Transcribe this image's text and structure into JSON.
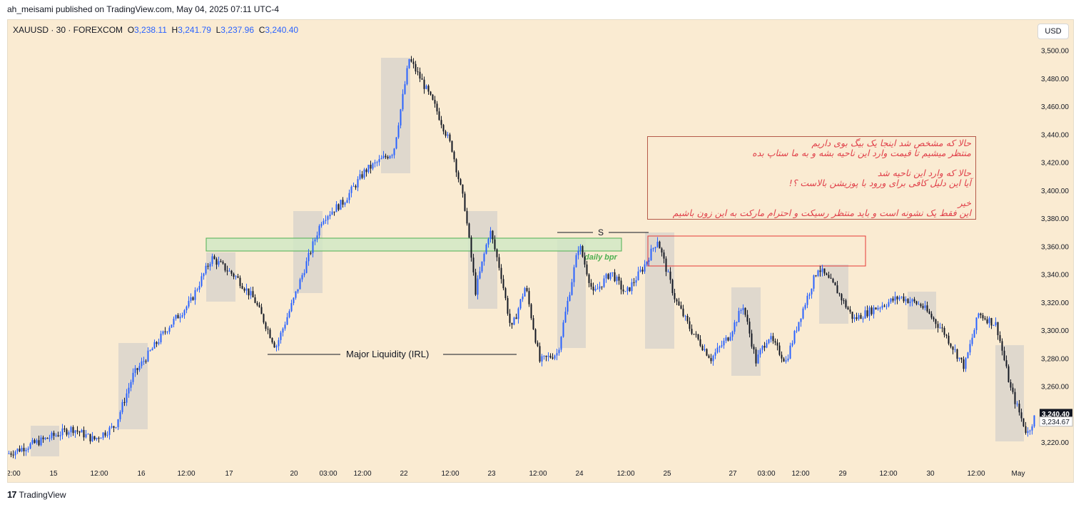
{
  "header": {
    "published_text": "ah_meisami published on TradingView.com, May 04, 2025 07:11 UTC-4"
  },
  "symbol_bar": {
    "symbol": "XAUUSD · 30 · FOREXCOM",
    "open_label": "O",
    "open": "3,238.11",
    "high_label": "H",
    "high": "3,241.79",
    "low_label": "L",
    "low": "3,237.96",
    "close_label": "C",
    "close": "3,240.40"
  },
  "currency_button": "USD",
  "chart_data": {
    "type": "candlestick",
    "price_ticks": [
      3500,
      3480,
      3460,
      3440,
      3420,
      3400,
      3380,
      3360,
      3340,
      3320,
      3300,
      3280,
      3260,
      3220
    ],
    "price_tick_labels": [
      "3,500.00",
      "3,480.00",
      "3,460.00",
      "3,440.00",
      "3,420.00",
      "3,400.00",
      "3,380.00",
      "3,360.00",
      "3,340.00",
      "3,320.00",
      "3,300.00",
      "3,280.00",
      "3,260.00",
      "3,220.00"
    ],
    "last_price": {
      "value": 3240.4,
      "label": "3,240.40"
    },
    "secondary_price": {
      "value": 3234.67,
      "label": "3,234.67"
    },
    "time_labels": [
      "2:00",
      "15",
      "12:00",
      "16",
      "12:00",
      "17",
      "20",
      "03:00",
      "12:00",
      "22",
      "12:00",
      "23",
      "12:00",
      "24",
      "12:00",
      "25",
      "27",
      "03:00",
      "12:00",
      "29",
      "12:00",
      "30",
      "12:00",
      "May"
    ],
    "colors": {
      "up": "#2962ff",
      "down": "#131722",
      "zone_fill": "#c8c8c8",
      "bpr_fill": "#cfe8c4",
      "bpr_stroke": "#4caf50",
      "box_stroke": "#e53935"
    },
    "price_path": [
      {
        "t": 0,
        "p": 3212
      },
      {
        "t": 30,
        "p": 3218
      },
      {
        "t": 60,
        "p": 3224
      },
      {
        "t": 90,
        "p": 3230
      },
      {
        "t": 120,
        "p": 3222
      },
      {
        "t": 150,
        "p": 3232
      },
      {
        "t": 175,
        "p": 3268
      },
      {
        "t": 195,
        "p": 3282
      },
      {
        "t": 225,
        "p": 3303
      },
      {
        "t": 255,
        "p": 3320
      },
      {
        "t": 285,
        "p": 3352
      },
      {
        "t": 305,
        "p": 3344
      },
      {
        "t": 320,
        "p": 3338
      },
      {
        "t": 345,
        "p": 3322
      },
      {
        "t": 375,
        "p": 3288
      },
      {
        "t": 400,
        "p": 3322
      },
      {
        "t": 415,
        "p": 3344
      },
      {
        "t": 440,
        "p": 3380
      },
      {
        "t": 470,
        "p": 3392
      },
      {
        "t": 500,
        "p": 3414
      },
      {
        "t": 540,
        "p": 3428
      },
      {
        "t": 562,
        "p": 3494
      },
      {
        "t": 580,
        "p": 3478
      },
      {
        "t": 600,
        "p": 3458
      },
      {
        "t": 622,
        "p": 3430
      },
      {
        "t": 640,
        "p": 3388
      },
      {
        "t": 655,
        "p": 3328
      },
      {
        "t": 675,
        "p": 3372
      },
      {
        "t": 690,
        "p": 3342
      },
      {
        "t": 705,
        "p": 3300
      },
      {
        "t": 725,
        "p": 3332
      },
      {
        "t": 745,
        "p": 3278
      },
      {
        "t": 770,
        "p": 3284
      },
      {
        "t": 800,
        "p": 3362
      },
      {
        "t": 820,
        "p": 3326
      },
      {
        "t": 845,
        "p": 3342
      },
      {
        "t": 865,
        "p": 3326
      },
      {
        "t": 890,
        "p": 3345
      },
      {
        "t": 910,
        "p": 3365
      },
      {
        "t": 935,
        "p": 3322
      },
      {
        "t": 955,
        "p": 3302
      },
      {
        "t": 985,
        "p": 3280
      },
      {
        "t": 1010,
        "p": 3296
      },
      {
        "t": 1030,
        "p": 3318
      },
      {
        "t": 1048,
        "p": 3278
      },
      {
        "t": 1065,
        "p": 3296
      },
      {
        "t": 1090,
        "p": 3278
      },
      {
        "t": 1110,
        "p": 3310
      },
      {
        "t": 1135,
        "p": 3345
      },
      {
        "t": 1160,
        "p": 3330
      },
      {
        "t": 1185,
        "p": 3308
      },
      {
        "t": 1215,
        "p": 3316
      },
      {
        "t": 1250,
        "p": 3324
      },
      {
        "t": 1280,
        "p": 3318
      },
      {
        "t": 1310,
        "p": 3300
      },
      {
        "t": 1340,
        "p": 3274
      },
      {
        "t": 1360,
        "p": 3312
      },
      {
        "t": 1385,
        "p": 3304
      },
      {
        "t": 1405,
        "p": 3258
      },
      {
        "t": 1428,
        "p": 3226
      },
      {
        "t": 1440,
        "p": 3240
      }
    ],
    "annotations": {
      "major_liquidity": "Major Liquidity (IRL)",
      "structure_label": "S",
      "bpr_label": "daily bpr",
      "note_lines": [
        "حالا که مشخص شد اینجا یک بیگ بوی داریم",
        "منتظر میشیم تا قیمت وارد این ناحیه بشه و به ما ستاپ بده",
        "حالا که وارد این ناحیه شد",
        "آیا این دلیل کافی برای ورود با پوزیشن بالاست ؟!",
        "خیر",
        "این فقط یک نشونه است و باید منتظر رسیکت و احترام مارکت به این زون باشیم"
      ]
    }
  },
  "footer": {
    "logo_glyph": "17",
    "brand": "TradingView"
  }
}
